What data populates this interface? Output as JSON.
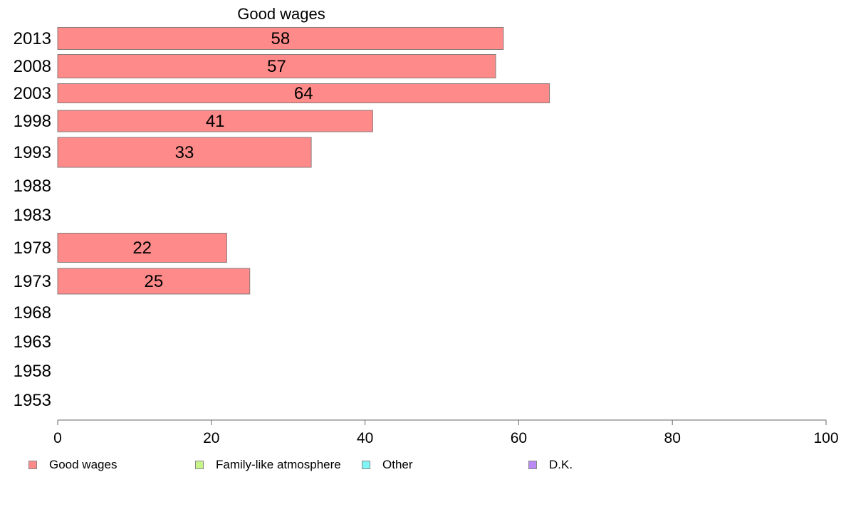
{
  "chart_data": {
    "type": "bar",
    "orientation": "horizontal",
    "title": "Good wages",
    "categories": [
      "2013",
      "2008",
      "2003",
      "1998",
      "1993",
      "1988",
      "1983",
      "1978",
      "1973",
      "1968",
      "1963",
      "1958",
      "1953"
    ],
    "series": [
      {
        "name": "Good wages",
        "color": "#ff8a8a",
        "values": [
          58,
          57,
          64,
          41,
          33,
          null,
          null,
          22,
          25,
          null,
          null,
          null,
          null
        ]
      }
    ],
    "bar_labels": [
      "58",
      "57",
      "64",
      "41",
      "33",
      "",
      "",
      "22",
      "25",
      "",
      "",
      "",
      ""
    ],
    "xlim": [
      0,
      100
    ],
    "xticks": [
      0,
      20,
      40,
      60,
      80,
      100
    ],
    "grid": false,
    "legend_position": "bottom"
  },
  "legend": [
    {
      "label": "Good wages",
      "color": "#ff8a8a"
    },
    {
      "label": "Family-like atmosphere",
      "color": "#c8f58a"
    },
    {
      "label": "Other",
      "color": "#80f5f5"
    },
    {
      "label": "D.K.",
      "color": "#b98af5"
    }
  ]
}
